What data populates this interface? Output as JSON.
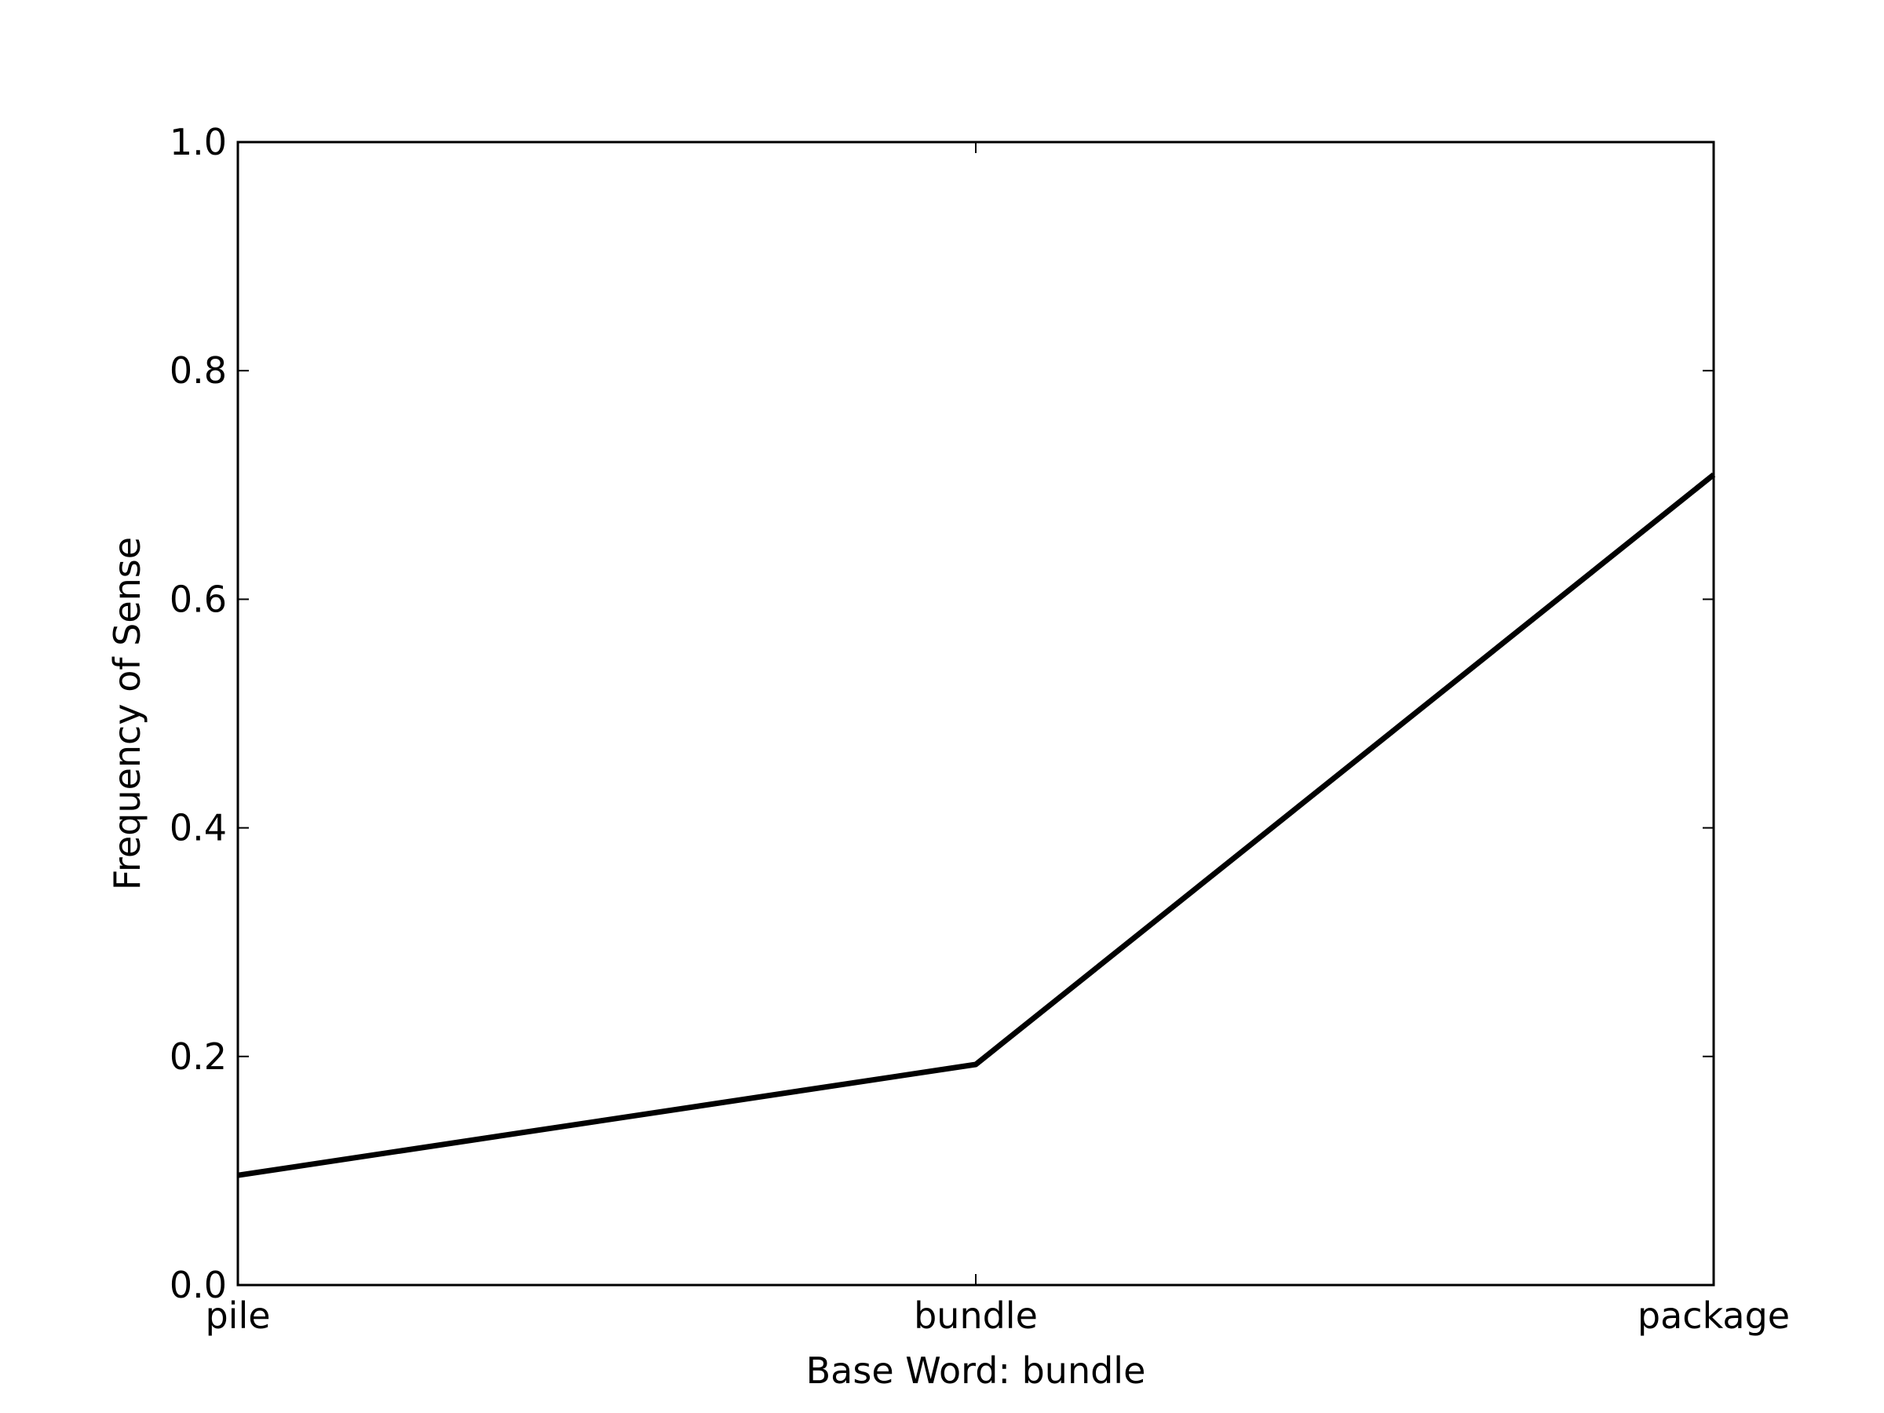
{
  "chart_data": {
    "type": "line",
    "categories": [
      "pile",
      "bundle",
      "package"
    ],
    "series": [
      {
        "values": [
          0.096,
          0.193,
          0.709
        ]
      }
    ],
    "xlabel": "Base Word: bundle",
    "ylabel": "Frequency of Sense",
    "ylim": [
      0.0,
      1.0
    ],
    "yticks": [
      "0.0",
      "0.2",
      "0.4",
      "0.6",
      "0.8",
      "1.0"
    ],
    "grid": false,
    "line_color": "#000000"
  }
}
